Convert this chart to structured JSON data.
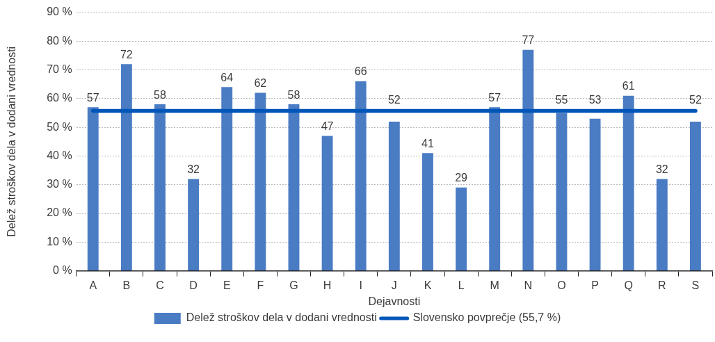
{
  "chart_data": {
    "type": "bar",
    "xlabel": "Dejavnosti",
    "ylabel": "Delež stroškov dela v dodani vrednosti",
    "categories": [
      "A",
      "B",
      "C",
      "D",
      "E",
      "F",
      "G",
      "H",
      "I",
      "J",
      "K",
      "L",
      "M",
      "N",
      "O",
      "P",
      "Q",
      "R",
      "S"
    ],
    "series": [
      {
        "name": "Delež stroškov dela v dodani vrednosti",
        "color": "#4a7cc4",
        "values": [
          57,
          72,
          58,
          32,
          64,
          62,
          58,
          47,
          66,
          52,
          41,
          29,
          57,
          77,
          55,
          53,
          61,
          32,
          52
        ],
        "value_labels": [
          "57",
          "72",
          "58",
          "32",
          "64",
          "62",
          "58",
          "47",
          "66",
          "52",
          "41",
          "29",
          "57",
          "77",
          "55",
          "53",
          "61",
          "32",
          "52"
        ]
      },
      {
        "name": "Slovensko povprečje (55,7 %)",
        "type": "line",
        "color": "#0056b8",
        "values": [
          55.7,
          55.7,
          55.7,
          55.7,
          55.7,
          55.7,
          55.7,
          55.7,
          55.7,
          55.7,
          55.7,
          55.7,
          55.7,
          55.7,
          55.7,
          55.7,
          55.7,
          55.7,
          55.7
        ]
      }
    ],
    "ylim": [
      0,
      90
    ],
    "yticks": [
      {
        "value": 0,
        "label": "0 %"
      },
      {
        "value": 10,
        "label": "10 %"
      },
      {
        "value": 20,
        "label": "20 %"
      },
      {
        "value": 30,
        "label": "30 %"
      },
      {
        "value": 40,
        "label": "40 %"
      },
      {
        "value": 50,
        "label": "50 %"
      },
      {
        "value": 60,
        "label": "60 %"
      },
      {
        "value": 70,
        "label": "70 %"
      },
      {
        "value": 80,
        "label": "80 %"
      },
      {
        "value": 90,
        "label": "90 %"
      }
    ],
    "grid": "y",
    "legend": "bottom",
    "marker": "none",
    "line_style": "solid"
  }
}
